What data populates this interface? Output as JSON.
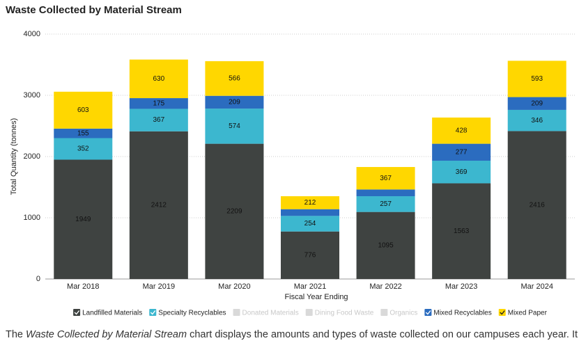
{
  "chart_data": {
    "type": "stacked_bar",
    "title": "Waste Collected by Material Stream",
    "x_label": "Fiscal Year Ending",
    "y_label": "Total Quantity (tonnes)",
    "categories": [
      "Mar 2018",
      "Mar 2019",
      "Mar 2020",
      "Mar 2021",
      "Mar 2022",
      "Mar 2023",
      "Mar 2024"
    ],
    "series": [
      {
        "name": "Landfilled Materials",
        "color": "#3f4341",
        "values": [
          1949,
          2412,
          2209,
          776,
          1095,
          1563,
          2416
        ]
      },
      {
        "name": "Specialty Recyclables",
        "color": "#3cb7cf",
        "values": [
          352,
          367,
          574,
          254,
          257,
          369,
          346
        ]
      },
      {
        "name": "Donated Materials",
        "color": "#d9d9d9",
        "visible": false
      },
      {
        "name": "Dining Food Waste",
        "color": "#d9d9d9",
        "visible": false
      },
      {
        "name": "Organics",
        "color": "#d9d9d9",
        "visible": false
      },
      {
        "name": "Mixed Recyclables",
        "color": "#2b6cbf",
        "values": [
          155,
          175,
          209,
          110,
          110,
          277,
          209
        ],
        "value_labels": [
          "155",
          "175",
          "209",
          null,
          null,
          "277",
          "209"
        ]
      },
      {
        "name": "Mixed Paper",
        "color": "#ffd700",
        "values": [
          603,
          630,
          566,
          212,
          367,
          428,
          593
        ]
      }
    ],
    "ylim": [
      0,
      4000
    ],
    "yticks": [
      0,
      1000,
      2000,
      3000,
      4000
    ],
    "grid": true
  },
  "caption": {
    "before": "The ",
    "italic": "Waste Collected by Material Stream",
    "after": " chart displays the amounts and types of waste collected on our campuses each year. It"
  }
}
